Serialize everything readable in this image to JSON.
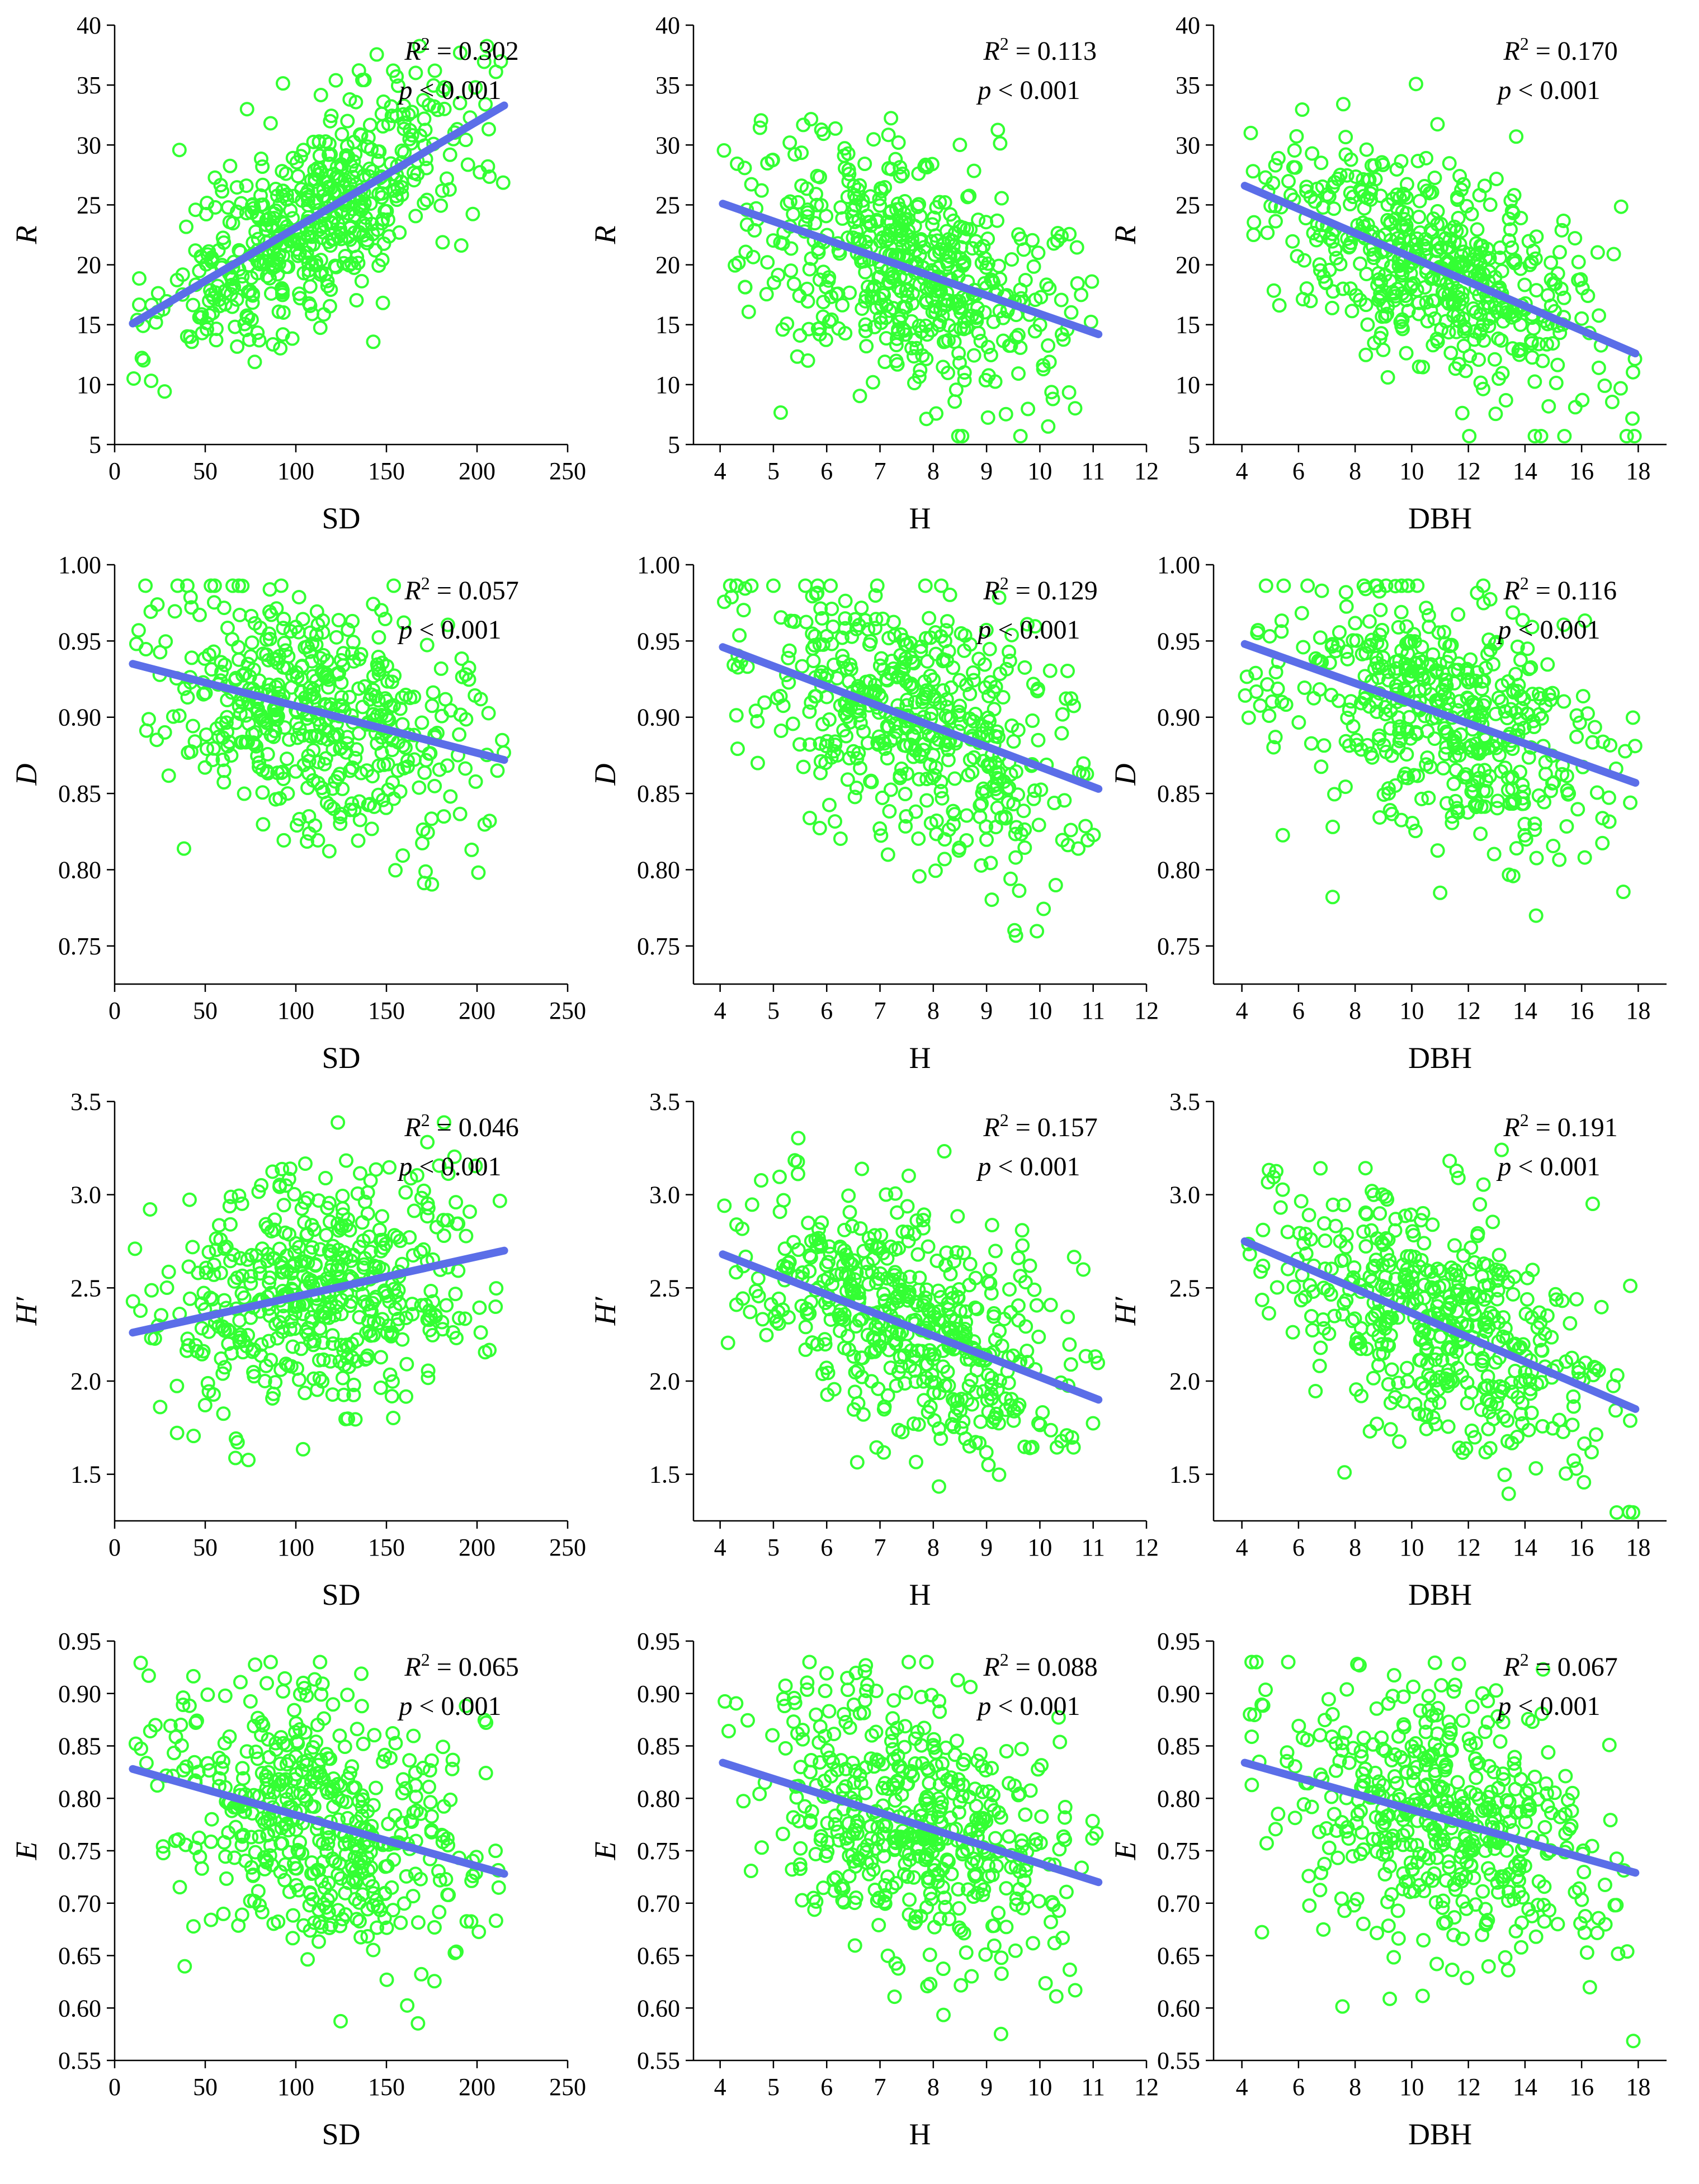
{
  "colors": {
    "points": "#33ff33",
    "fit_line": "#5b6ee8",
    "axis": "#000000"
  },
  "chart_data": [
    {
      "id": "R-SD",
      "type": "scatter",
      "xlabel": "SD",
      "ylabel": "R",
      "xlim": [
        0,
        250
      ],
      "ylim": [
        5,
        40
      ],
      "xticks": [
        "0",
        "50",
        "100",
        "150",
        "200",
        "250"
      ],
      "yticks": [
        "5",
        "10",
        "15",
        "20",
        "25",
        "30",
        "35",
        "40"
      ],
      "fit": {
        "x": [
          10,
          215
        ],
        "y": [
          15.1,
          33.3
        ]
      },
      "annotation": {
        "r2": "R2 = 0.302",
        "r2_value": "0.302",
        "p": "p < 0.001"
      },
      "trend": {
        "slope": 0.0888,
        "x_range": [
          10,
          215
        ],
        "spread": 4.2,
        "n": 520,
        "seed": 11
      }
    },
    {
      "id": "R-H",
      "type": "scatter",
      "xlabel": "H",
      "ylabel": "R",
      "xlim": [
        3.5,
        12
      ],
      "ylim": [
        5,
        40
      ],
      "xticks": [
        "4",
        "5",
        "6",
        "7",
        "8",
        "9",
        "10",
        "11",
        "12"
      ],
      "yticks": [
        "5",
        "10",
        "15",
        "20",
        "25",
        "30",
        "35",
        "40"
      ],
      "fit": {
        "x": [
          4.05,
          11.1
        ],
        "y": [
          25.1,
          14.2
        ]
      },
      "annotation": {
        "r2": "R2 = 0.113",
        "r2_value": "0.113",
        "p": "p < 0.001"
      },
      "trend": {
        "slope": -1.55,
        "x_range": [
          4.05,
          11.1
        ],
        "spread": 4.6,
        "n": 520,
        "seed": 12
      }
    },
    {
      "id": "R-DBH",
      "type": "scatter",
      "xlabel": "DBH",
      "ylabel": "R",
      "xlim": [
        3,
        19
      ],
      "ylim": [
        5,
        40
      ],
      "xticks": [
        "4",
        "6",
        "8",
        "10",
        "12",
        "14",
        "16",
        "18"
      ],
      "yticks": [
        "5",
        "10",
        "15",
        "20",
        "25",
        "30",
        "35",
        "40"
      ],
      "fit": {
        "x": [
          4.1,
          17.9
        ],
        "y": [
          26.6,
          12.6
        ]
      },
      "annotation": {
        "r2": "R2 = 0.170",
        "r2_value": "0.170",
        "p": "p < 0.001"
      },
      "trend": {
        "slope": -1.01,
        "x_range": [
          4.1,
          17.9
        ],
        "spread": 4.4,
        "n": 520,
        "seed": 13
      }
    },
    {
      "id": "D-SD",
      "type": "scatter",
      "xlabel": "SD",
      "ylabel": "D",
      "xlim": [
        0,
        250
      ],
      "ylim": [
        0.725,
        1.0
      ],
      "xticks": [
        "0",
        "50",
        "100",
        "150",
        "200",
        "250"
      ],
      "yticks": [
        "0.75",
        "0.80",
        "0.85",
        "0.90",
        "0.95",
        "1.00"
      ],
      "fit": {
        "x": [
          10,
          215
        ],
        "y": [
          0.935,
          0.872
        ]
      },
      "annotation": {
        "r2": "R2 = 0.057",
        "r2_value": "0.057",
        "p": "p < 0.001"
      },
      "trend": {
        "slope": -0.000307,
        "x_range": [
          10,
          215
        ],
        "spread": 0.04,
        "n": 480,
        "seed": 21
      }
    },
    {
      "id": "D-H",
      "type": "scatter",
      "xlabel": "H",
      "ylabel": "D",
      "xlim": [
        3.5,
        12
      ],
      "ylim": [
        0.725,
        1.0
      ],
      "xticks": [
        "4",
        "5",
        "6",
        "7",
        "8",
        "9",
        "10",
        "11",
        "12"
      ],
      "yticks": [
        "0.75",
        "0.80",
        "0.85",
        "0.90",
        "0.95",
        "1.00"
      ],
      "fit": {
        "x": [
          4.05,
          11.1
        ],
        "y": [
          0.946,
          0.853
        ]
      },
      "annotation": {
        "r2": "R2 = 0.129",
        "r2_value": "0.129",
        "p": "p < 0.001"
      },
      "trend": {
        "slope": -0.0132,
        "x_range": [
          4.05,
          11.1
        ],
        "spread": 0.04,
        "n": 480,
        "seed": 22
      }
    },
    {
      "id": "D-DBH",
      "type": "scatter",
      "xlabel": "DBH",
      "ylabel": "D",
      "xlim": [
        3,
        19
      ],
      "ylim": [
        0.725,
        1.0
      ],
      "xticks": [
        "4",
        "6",
        "8",
        "10",
        "12",
        "14",
        "16",
        "18"
      ],
      "yticks": [
        "0.75",
        "0.80",
        "0.85",
        "0.90",
        "0.95",
        "1.00"
      ],
      "fit": {
        "x": [
          4.1,
          17.9
        ],
        "y": [
          0.948,
          0.857
        ]
      },
      "annotation": {
        "r2": "R2 = 0.116",
        "r2_value": "0.116",
        "p": "p < 0.001"
      },
      "trend": {
        "slope": -0.0066,
        "x_range": [
          4.1,
          17.9
        ],
        "spread": 0.04,
        "n": 480,
        "seed": 23
      }
    },
    {
      "id": "H'-SD",
      "type": "scatter",
      "xlabel": "SD",
      "ylabel": "H′",
      "xlim": [
        0,
        250
      ],
      "ylim": [
        1.25,
        3.5
      ],
      "xticks": [
        "0",
        "50",
        "100",
        "150",
        "200",
        "250"
      ],
      "yticks": [
        "1.5",
        "2.0",
        "2.5",
        "3.0",
        "3.5"
      ],
      "fit": {
        "x": [
          10,
          215
        ],
        "y": [
          2.26,
          2.7
        ]
      },
      "annotation": {
        "r2": "R2 = 0.046",
        "r2_value": "0.046",
        "p": "p < 0.001"
      },
      "trend": {
        "slope": 0.00215,
        "x_range": [
          10,
          215
        ],
        "spread": 0.32,
        "n": 480,
        "seed": 31
      }
    },
    {
      "id": "H'-H",
      "type": "scatter",
      "xlabel": "H",
      "ylabel": "H′",
      "xlim": [
        3.5,
        12
      ],
      "ylim": [
        1.25,
        3.5
      ],
      "xticks": [
        "4",
        "5",
        "6",
        "7",
        "8",
        "9",
        "10",
        "11",
        "12"
      ],
      "yticks": [
        "1.5",
        "2.0",
        "2.5",
        "3.0",
        "3.5"
      ],
      "fit": {
        "x": [
          4.05,
          11.1
        ],
        "y": [
          2.68,
          1.9
        ]
      },
      "annotation": {
        "r2": "R2 = 0.157",
        "r2_value": "0.157",
        "p": "p < 0.001"
      },
      "trend": {
        "slope": -0.111,
        "x_range": [
          4.05,
          11.1
        ],
        "spread": 0.3,
        "n": 480,
        "seed": 32
      }
    },
    {
      "id": "H'-DBH",
      "type": "scatter",
      "xlabel": "DBH",
      "ylabel": "H′",
      "xlim": [
        3,
        19
      ],
      "ylim": [
        1.25,
        3.5
      ],
      "xticks": [
        "4",
        "6",
        "8",
        "10",
        "12",
        "14",
        "16",
        "18"
      ],
      "yticks": [
        "1.5",
        "2.0",
        "2.5",
        "3.0",
        "3.5"
      ],
      "fit": {
        "x": [
          4.1,
          17.9
        ],
        "y": [
          2.75,
          1.85
        ]
      },
      "annotation": {
        "r2": "R2 = 0.191",
        "r2_value": "0.191",
        "p": "p < 0.001"
      },
      "trend": {
        "slope": -0.0652,
        "x_range": [
          4.1,
          17.9
        ],
        "spread": 0.3,
        "n": 480,
        "seed": 33
      }
    },
    {
      "id": "E-SD",
      "type": "scatter",
      "xlabel": "SD",
      "ylabel": "E",
      "xlim": [
        0,
        250
      ],
      "ylim": [
        0.55,
        0.95
      ],
      "xticks": [
        "0",
        "50",
        "100",
        "150",
        "200",
        "250"
      ],
      "yticks": [
        "0.55",
        "0.60",
        "0.65",
        "0.70",
        "0.75",
        "0.80",
        "0.85",
        "0.90",
        "0.95"
      ],
      "fit": {
        "x": [
          10,
          215
        ],
        "y": [
          0.828,
          0.728
        ]
      },
      "annotation": {
        "r2": "R2 = 0.065",
        "r2_value": "0.065",
        "p": "p < 0.001"
      },
      "trend": {
        "slope": -0.000488,
        "x_range": [
          10,
          215
        ],
        "spread": 0.065,
        "n": 480,
        "seed": 41
      }
    },
    {
      "id": "E-H",
      "type": "scatter",
      "xlabel": "H",
      "ylabel": "E",
      "xlim": [
        3.5,
        12
      ],
      "ylim": [
        0.55,
        0.95
      ],
      "xticks": [
        "4",
        "5",
        "6",
        "7",
        "8",
        "9",
        "10",
        "11",
        "12"
      ],
      "yticks": [
        "0.55",
        "0.60",
        "0.65",
        "0.70",
        "0.75",
        "0.80",
        "0.85",
        "0.90",
        "0.95"
      ],
      "fit": {
        "x": [
          4.05,
          11.1
        ],
        "y": [
          0.834,
          0.72
        ]
      },
      "annotation": {
        "r2": "R2 = 0.088",
        "r2_value": "0.088",
        "p": "p < 0.001"
      },
      "trend": {
        "slope": -0.0162,
        "x_range": [
          4.05,
          11.1
        ],
        "spread": 0.065,
        "n": 480,
        "seed": 42
      }
    },
    {
      "id": "E-DBH",
      "type": "scatter",
      "xlabel": "DBH",
      "ylabel": "E",
      "xlim": [
        3,
        19
      ],
      "ylim": [
        0.55,
        0.95
      ],
      "xticks": [
        "4",
        "6",
        "8",
        "10",
        "12",
        "14",
        "16",
        "18"
      ],
      "yticks": [
        "0.55",
        "0.60",
        "0.65",
        "0.70",
        "0.75",
        "0.80",
        "0.85",
        "0.90",
        "0.95"
      ],
      "fit": {
        "x": [
          4.1,
          17.9
        ],
        "y": [
          0.834,
          0.729
        ]
      },
      "annotation": {
        "r2": "R2 = 0.067",
        "r2_value": "0.067",
        "p": "p < 0.001"
      },
      "trend": {
        "slope": -0.0076,
        "x_range": [
          4.1,
          17.9
        ],
        "spread": 0.065,
        "n": 480,
        "seed": 43
      }
    }
  ]
}
